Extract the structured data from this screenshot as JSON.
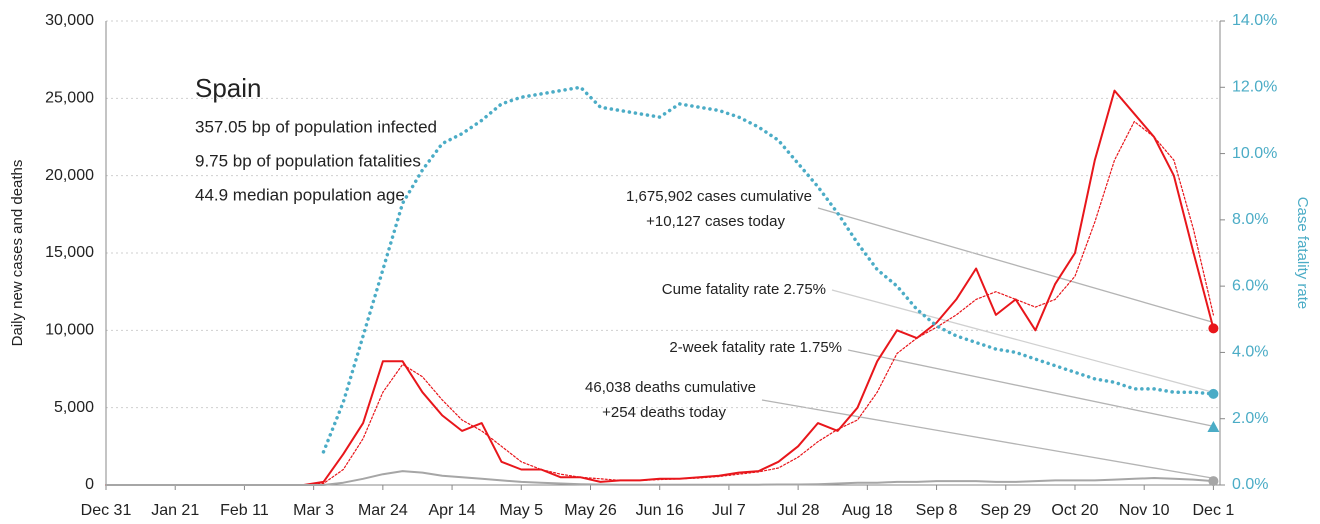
{
  "chart_data": {
    "type": "line",
    "title": "Spain",
    "stats": [
      "357.05 bp of population infected",
      "9.75 bp of population fatalities",
      "44.9 median population age"
    ],
    "annotations": [
      "1,675,902 cases cumulative",
      "+10,127 cases today",
      "Cume fatality rate 2.75%",
      "2-week fatality rate 1.75%",
      "46,038 deaths cumulative",
      "+254 deaths today"
    ],
    "y_label": "Daily new cases and deaths",
    "y2_label": "Case fatality rate",
    "x": [
      0,
      6,
      12,
      18,
      24,
      30,
      36,
      42,
      48,
      54,
      60,
      66,
      72,
      78,
      84,
      90,
      96,
      102,
      108,
      114,
      120,
      126,
      132,
      138,
      144,
      150,
      156,
      162,
      168,
      174,
      180,
      186,
      192,
      198,
      204,
      210,
      216,
      222,
      228,
      234,
      240,
      246,
      252,
      258,
      264,
      270,
      276,
      282,
      288,
      294,
      300,
      306,
      312,
      318,
      324,
      330,
      336
    ],
    "xlim": [
      0,
      338
    ],
    "xticks": [
      {
        "value": 0,
        "label": "Dec 31"
      },
      {
        "value": 21,
        "label": "Jan 21"
      },
      {
        "value": 42,
        "label": "Feb 11"
      },
      {
        "value": 63,
        "label": "Mar 3"
      },
      {
        "value": 84,
        "label": "Mar 24"
      },
      {
        "value": 105,
        "label": "Apr 14"
      },
      {
        "value": 126,
        "label": "May 5"
      },
      {
        "value": 147,
        "label": "May 26"
      },
      {
        "value": 168,
        "label": "Jun 16"
      },
      {
        "value": 189,
        "label": "Jul 7"
      },
      {
        "value": 210,
        "label": "Jul 28"
      },
      {
        "value": 231,
        "label": "Aug 18"
      },
      {
        "value": 252,
        "label": "Sep 8"
      },
      {
        "value": 273,
        "label": "Sep 29"
      },
      {
        "value": 294,
        "label": "Oct 20"
      },
      {
        "value": 315,
        "label": "Nov 10"
      },
      {
        "value": 336,
        "label": "Dec 1"
      }
    ],
    "ylim": [
      0,
      30000
    ],
    "yticks": [
      0,
      {
        "value": 5000,
        "label": "5,000"
      },
      {
        "value": 10000,
        "label": "10,000"
      },
      {
        "value": 15000,
        "label": "15,000"
      },
      {
        "value": 20000,
        "label": "20,000"
      },
      {
        "value": 25000,
        "label": "25,000"
      },
      {
        "value": 30000,
        "label": "30,000"
      }
    ],
    "y2lim": [
      0,
      14
    ],
    "y2ticks": [
      {
        "value": 0,
        "label": "0.0%"
      },
      {
        "value": 2,
        "label": "2.0%"
      },
      {
        "value": 4,
        "label": "4.0%"
      },
      {
        "value": 6,
        "label": "6.0%"
      },
      {
        "value": 8,
        "label": "8.0%"
      },
      {
        "value": 10,
        "label": "10.0%"
      },
      {
        "value": 12,
        "label": "12.0%"
      },
      {
        "value": 14,
        "label": "14.0%"
      }
    ],
    "grid": true,
    "series": [
      {
        "color": "#e8161b",
        "line_style": "dotted",
        "values": [
          0,
          0,
          0,
          0,
          0,
          0,
          0,
          0,
          0,
          0,
          0,
          100,
          1000,
          3000,
          6000,
          7800,
          7000,
          5500,
          4200,
          3500,
          2500,
          1500,
          1000,
          700,
          500,
          400,
          300,
          300,
          350,
          400,
          450,
          550,
          700,
          850,
          1100,
          1800,
          2800,
          3600,
          4200,
          6000,
          8500,
          9500,
          10200,
          11000,
          12000,
          12500,
          12000,
          11500,
          12000,
          13500,
          17000,
          21000,
          23500,
          22500,
          21000,
          16500,
          11000
        ]
      },
      {
        "color": "#e8161b",
        "line_style": "solid",
        "end_marker": true,
        "values": [
          0,
          0,
          0,
          0,
          0,
          0,
          0,
          0,
          0,
          0,
          0,
          200,
          2000,
          4000,
          8000,
          8000,
          6000,
          4500,
          3500,
          4000,
          1500,
          1000,
          1000,
          500,
          500,
          200,
          300,
          300,
          400,
          400,
          500,
          600,
          800,
          900,
          1500,
          2500,
          4000,
          3500,
          5000,
          8000,
          10000,
          9500,
          10500,
          12000,
          14000,
          11000,
          12000,
          10000,
          13000,
          15000,
          21000,
          25500,
          24000,
          22500,
          20000,
          15000,
          10127
        ]
      },
      {
        "color": "#a6a6a6",
        "line_style": "solid",
        "end_marker": true,
        "values": [
          0,
          0,
          0,
          0,
          0,
          0,
          0,
          0,
          0,
          0,
          0,
          0,
          150,
          400,
          700,
          900,
          800,
          600,
          500,
          400,
          300,
          200,
          150,
          100,
          50,
          30,
          20,
          20,
          20,
          20,
          20,
          20,
          20,
          20,
          30,
          30,
          50,
          100,
          150,
          150,
          200,
          200,
          250,
          250,
          250,
          200,
          200,
          250,
          300,
          300,
          300,
          350,
          400,
          450,
          400,
          350,
          254
        ]
      },
      {
        "color": "#4bacc6",
        "line_style": "dotted",
        "axis": "y2",
        "end_marker": true,
        "values": [
          null,
          null,
          null,
          null,
          null,
          null,
          null,
          null,
          null,
          null,
          null,
          1.0,
          2.5,
          4.5,
          6.5,
          8.5,
          9.5,
          10.3,
          10.6,
          11.0,
          11.5,
          11.7,
          11.8,
          11.9,
          12.0,
          11.4,
          11.3,
          11.2,
          11.1,
          11.5,
          11.4,
          11.3,
          11.1,
          10.8,
          10.4,
          9.7,
          9.0,
          8.2,
          7.3,
          6.5,
          6.0,
          5.3,
          4.8,
          4.5,
          4.3,
          4.1,
          4.0,
          3.8,
          3.6,
          3.4,
          3.2,
          3.1,
          2.9,
          2.9,
          2.8,
          2.8,
          2.75
        ]
      }
    ],
    "markers": [
      {
        "value": 1.75,
        "axis": "y2",
        "shape": "triangle",
        "color": "#4bacc6"
      }
    ]
  }
}
